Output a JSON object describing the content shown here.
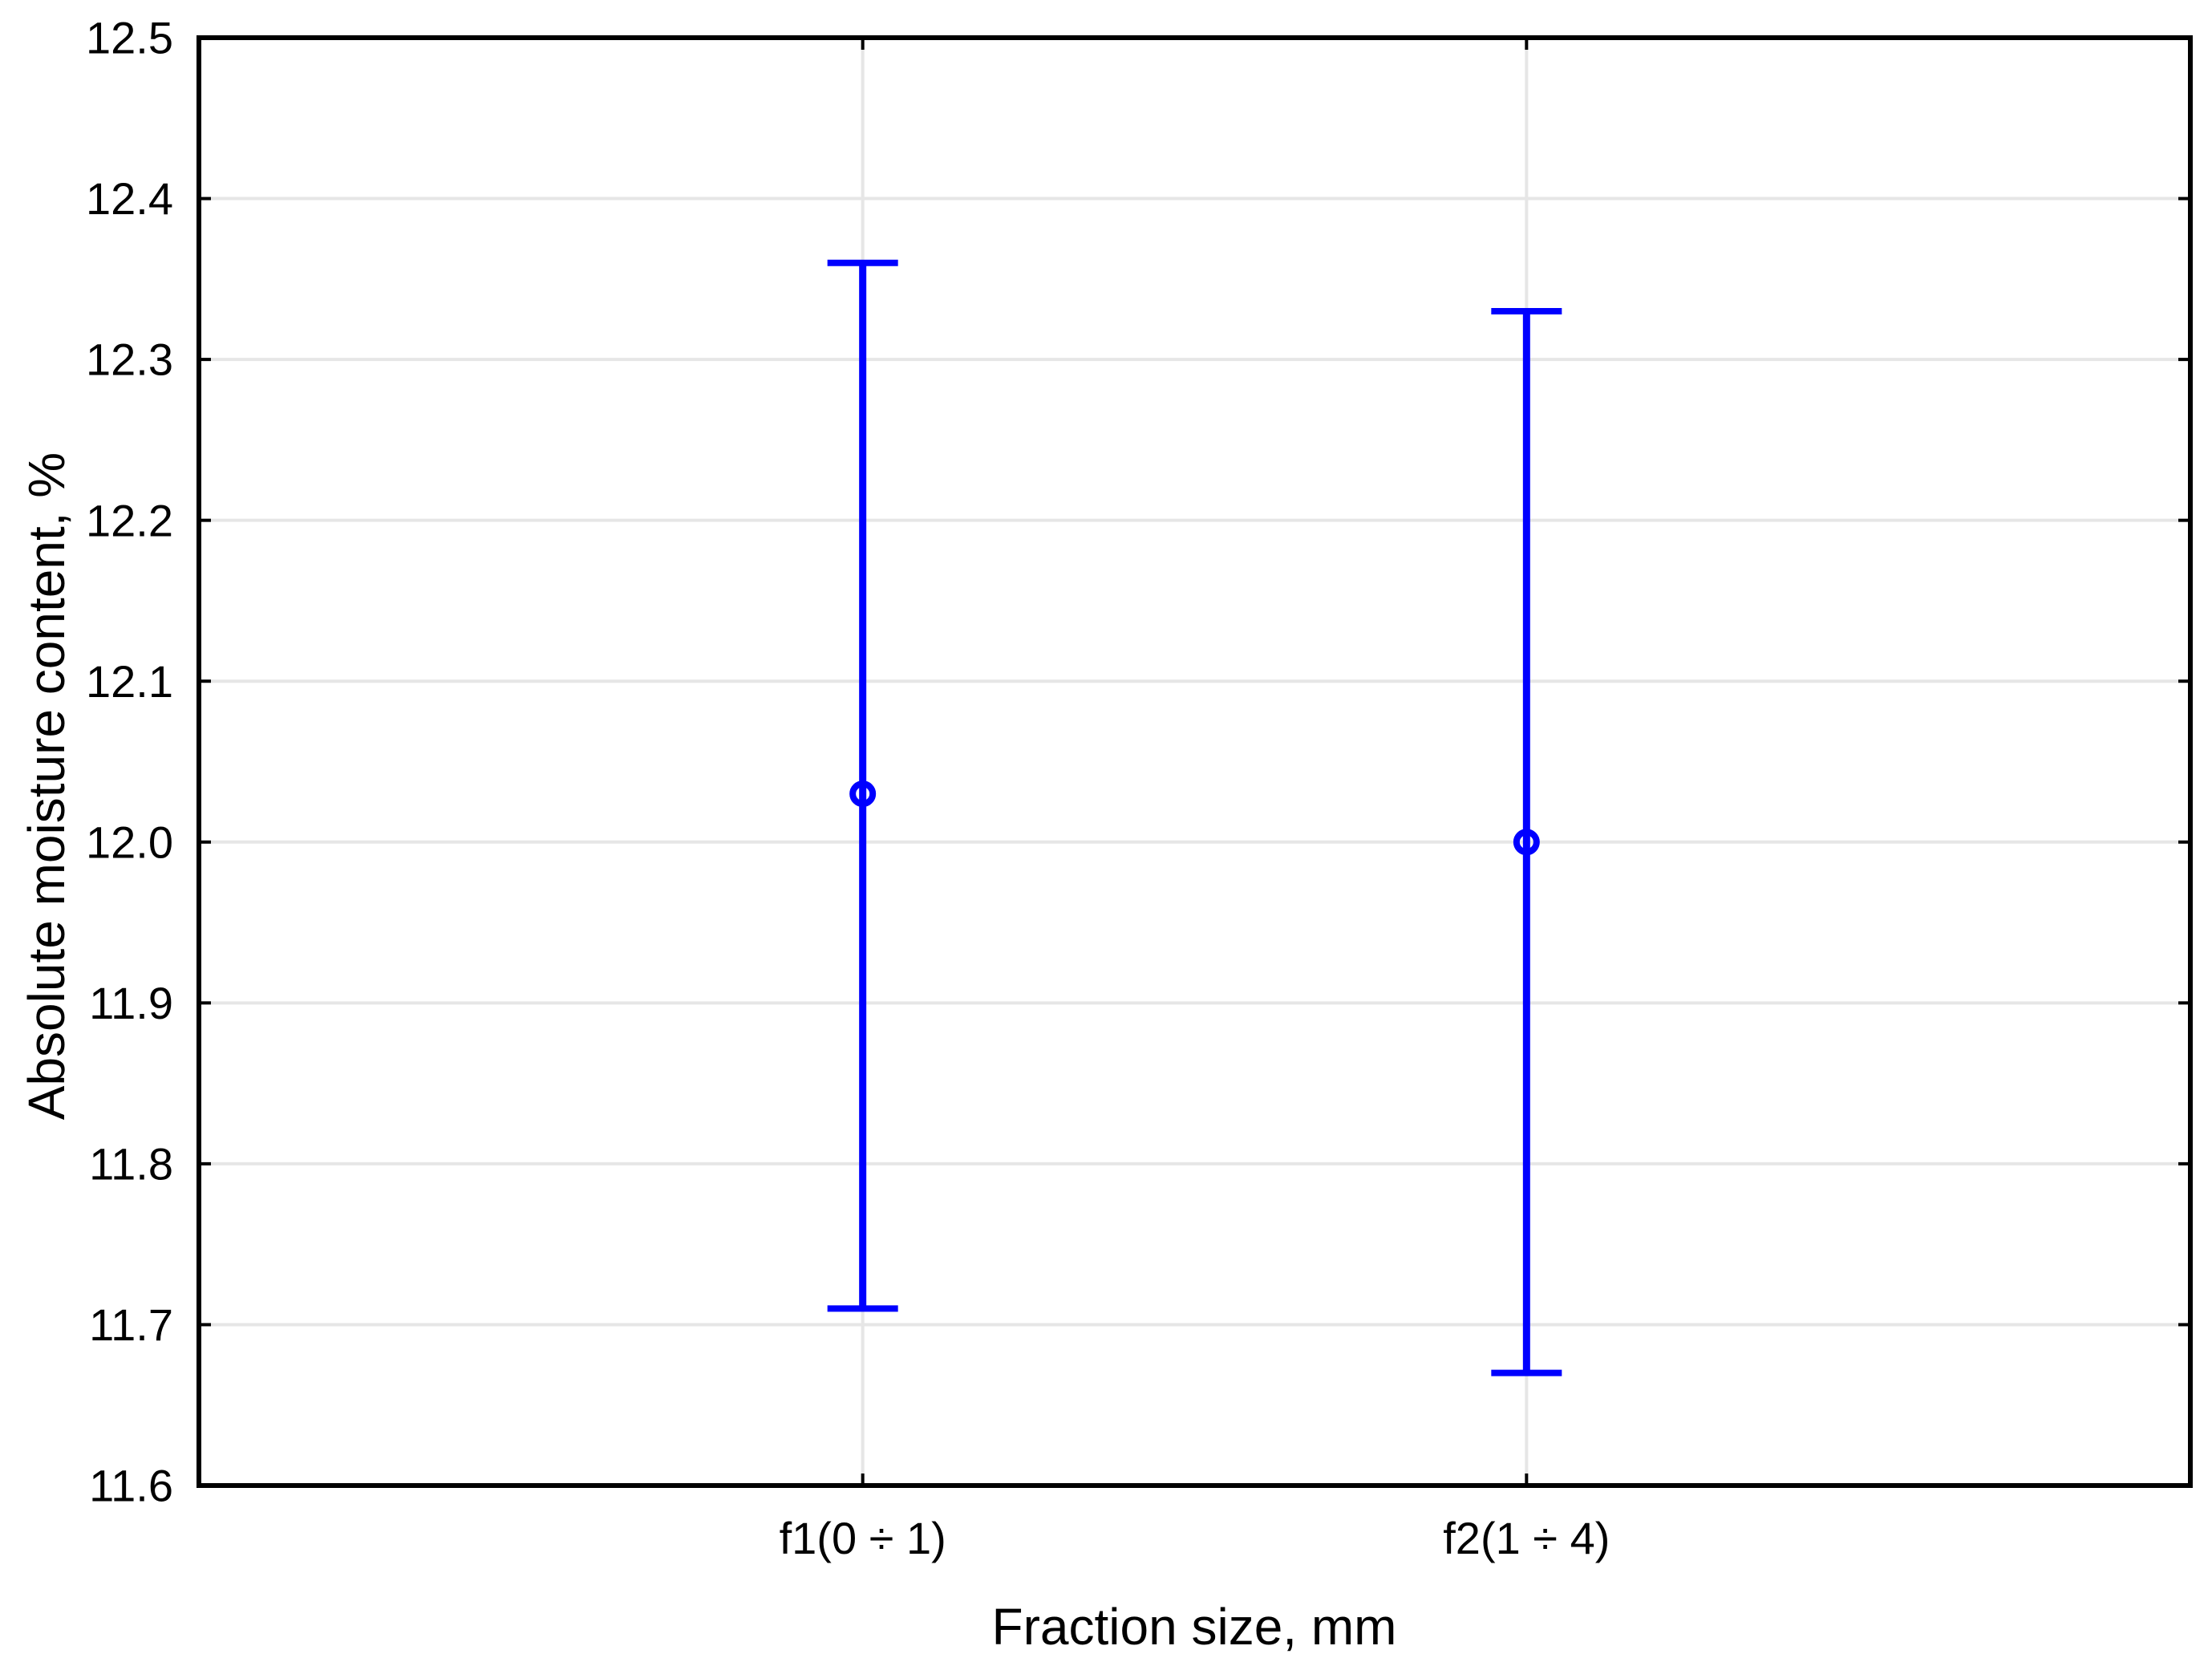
{
  "chart_data": {
    "type": "scatter",
    "subtype": "mean-with-error-bars",
    "xlabel": "Fraction size, mm",
    "ylabel": "Absolute moisture content, %",
    "categories": [
      "f1(0 ÷ 1)",
      "f2(1 ÷ 4)"
    ],
    "points": [
      {
        "category": "f1(0 ÷ 1)",
        "mean": 12.03,
        "upper": 12.36,
        "lower": 11.71
      },
      {
        "category": "f2(1 ÷ 4)",
        "mean": 12.0,
        "upper": 12.33,
        "lower": 11.67
      }
    ],
    "ylim": [
      11.6,
      12.5
    ],
    "ytick_step": 0.1,
    "ytick_labels": [
      "11.6",
      "11.7",
      "11.8",
      "11.9",
      "12.0",
      "12.1",
      "12.2",
      "12.3",
      "12.4",
      "12.5"
    ],
    "grid": true,
    "legend_visible": false,
    "marker": "open-circle",
    "colors": {
      "series": "#0000ff",
      "grid": "#e6e6e6",
      "axis": "#000000",
      "background": "#ffffff"
    }
  }
}
